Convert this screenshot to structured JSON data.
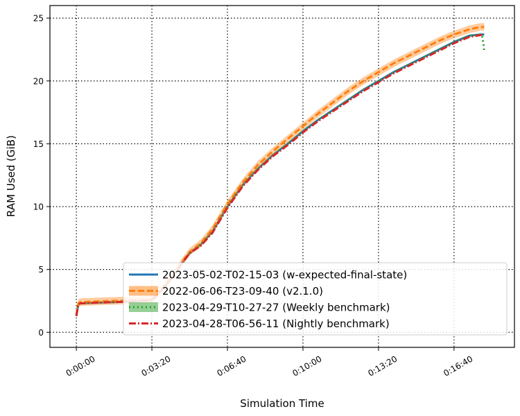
{
  "chart_data": {
    "type": "line",
    "xlabel": "Simulation Time",
    "ylabel": "RAM Used (GiB)",
    "xlim": [
      -70,
      1160
    ],
    "ylim": [
      -1.2,
      26
    ],
    "x_ticks": [
      {
        "value": 0,
        "label": "0:00:00"
      },
      {
        "value": 200,
        "label": "0:03:20"
      },
      {
        "value": 400,
        "label": "0:06:40"
      },
      {
        "value": 600,
        "label": "0:10:00"
      },
      {
        "value": 800,
        "label": "0:13:20"
      },
      {
        "value": 1000,
        "label": "0:16:40"
      }
    ],
    "y_ticks": [
      {
        "value": 0,
        "label": "0"
      },
      {
        "value": 5,
        "label": "5"
      },
      {
        "value": 10,
        "label": "10"
      },
      {
        "value": 15,
        "label": "15"
      },
      {
        "value": 20,
        "label": "20"
      },
      {
        "value": 25,
        "label": "25"
      }
    ],
    "grid": true,
    "legend_position": "lower-right",
    "series": [
      {
        "name": "2023-05-02-T02-15-03 (w-expected-final-state)",
        "color": "#1f77b4",
        "style": "solid",
        "x": [
          0,
          5,
          10,
          50,
          100,
          150,
          200,
          230,
          260,
          280,
          300,
          330,
          360,
          380,
          400,
          440,
          480,
          520,
          560,
          600,
          640,
          680,
          720,
          760,
          800,
          840,
          880,
          920,
          960,
          1000,
          1040,
          1070,
          1080
        ],
        "y": [
          1.3,
          2.2,
          2.3,
          2.35,
          2.4,
          2.45,
          2.55,
          3.5,
          4.6,
          5.5,
          6.3,
          7.0,
          8.0,
          9.0,
          10.0,
          11.7,
          13.0,
          14.1,
          15.0,
          16.0,
          16.9,
          17.7,
          18.5,
          19.3,
          20.0,
          20.7,
          21.3,
          21.9,
          22.5,
          23.1,
          23.6,
          23.7,
          23.7
        ]
      },
      {
        "name": "2022-06-06-T23-09-40 (v2.1.0)",
        "color": "#ff7f0e",
        "style": "dashed",
        "band": 0.3,
        "x": [
          0,
          5,
          10,
          50,
          100,
          150,
          200,
          230,
          260,
          280,
          300,
          330,
          360,
          380,
          400,
          440,
          480,
          520,
          560,
          600,
          640,
          680,
          720,
          760,
          800,
          840,
          880,
          920,
          960,
          1000,
          1040,
          1070,
          1080
        ],
        "y": [
          1.4,
          2.3,
          2.4,
          2.45,
          2.5,
          2.55,
          2.6,
          3.6,
          4.7,
          5.6,
          6.4,
          7.1,
          8.2,
          9.2,
          10.2,
          11.9,
          13.3,
          14.4,
          15.4,
          16.4,
          17.4,
          18.3,
          19.2,
          20.0,
          20.7,
          21.4,
          22.0,
          22.6,
          23.2,
          23.7,
          24.1,
          24.3,
          24.3
        ]
      },
      {
        "name": "2023-04-29-T10-27-27 (Weekly benchmark)",
        "color": "#2ca02c",
        "style": "dotted",
        "x": [
          0,
          5,
          10,
          50,
          100,
          150,
          200,
          230,
          260,
          280,
          300,
          330,
          360,
          380,
          400,
          440,
          480,
          520,
          560,
          600,
          640,
          680,
          720,
          760,
          800,
          840,
          880,
          920,
          960,
          1000,
          1040,
          1070,
          1075,
          1078,
          1080
        ],
        "y": [
          1.3,
          2.2,
          2.3,
          2.35,
          2.4,
          2.45,
          2.55,
          3.5,
          4.6,
          5.5,
          6.3,
          7.0,
          8.0,
          9.0,
          10.0,
          11.7,
          13.0,
          14.1,
          15.0,
          16.0,
          16.9,
          17.7,
          18.5,
          19.3,
          20.0,
          20.7,
          21.3,
          21.9,
          22.5,
          23.1,
          23.6,
          23.7,
          23.5,
          22.9,
          22.3
        ]
      },
      {
        "name": "2023-04-28-T06-56-11 (Nightly benchmark)",
        "color": "#d62728",
        "style": "dashdot",
        "x": [
          0,
          5,
          10,
          50,
          100,
          150,
          200,
          230,
          260,
          280,
          300,
          330,
          360,
          380,
          400,
          440,
          480,
          520,
          560,
          600,
          640,
          680,
          720,
          760,
          800,
          840,
          880,
          920,
          960,
          1000,
          1040,
          1070,
          1080
        ],
        "y": [
          1.3,
          2.2,
          2.3,
          2.35,
          2.4,
          2.45,
          2.55,
          3.5,
          4.6,
          5.5,
          6.3,
          6.9,
          7.9,
          8.9,
          9.9,
          11.6,
          12.9,
          14.0,
          14.9,
          15.9,
          16.8,
          17.6,
          18.4,
          19.2,
          19.9,
          20.6,
          21.2,
          21.8,
          22.4,
          23.0,
          23.5,
          23.65,
          23.7
        ]
      }
    ]
  }
}
